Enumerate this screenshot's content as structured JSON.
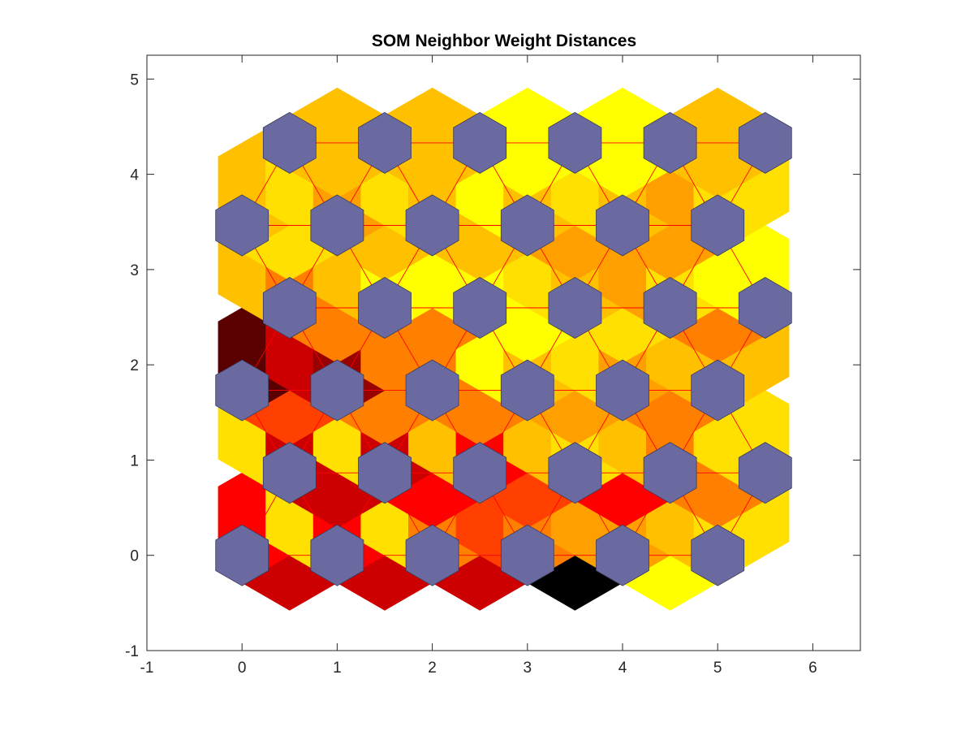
{
  "chart_data": {
    "type": "heatmap",
    "title": "SOM Neighbor Weight Distances",
    "xlabel": "",
    "ylabel": "",
    "xlim": [
      -1,
      6.5
    ],
    "ylim": [
      -1,
      5.25
    ],
    "x_ticks": [
      "-1",
      "0",
      "1",
      "2",
      "3",
      "4",
      "5",
      "6"
    ],
    "y_ticks": [
      "-1",
      "0",
      "1",
      "2",
      "3",
      "4",
      "5"
    ],
    "grid": false,
    "grid_size": [
      6,
      6
    ],
    "neuron_color": "#6a6aa0",
    "line_color": "#ff0000",
    "colormap": [
      "#000000",
      "#5a0000",
      "#990000",
      "#cc0000",
      "#ff0000",
      "#ff4000",
      "#ff8000",
      "#ffa000",
      "#ffc000",
      "#ffe000",
      "#ffff00"
    ],
    "distance_rows": [
      [
        0.34,
        0.34,
        0.34,
        0.0,
        0.95,
        0.8
      ],
      [
        0.4,
        0.9,
        0.4,
        0.9,
        0.58,
        0.45,
        0.6,
        0.65,
        0.7,
        0.75,
        0.9
      ],
      [
        0.34,
        0.44,
        0.52,
        0.4,
        0.6,
        0.66,
        0.34,
        0.66,
        0.58,
        0.66,
        0.66,
        0.78
      ],
      [
        0.9,
        0.34,
        0.9,
        0.34,
        0.75,
        0.44,
        0.75,
        0.9,
        0.75,
        0.6,
        0.92
      ],
      [
        0.47,
        0.56,
        0.6,
        0.66,
        0.6
      ],
      [
        0.05,
        0.34,
        0.15,
        0.57,
        0.58,
        0.97,
        0.75,
        0.85,
        0.7,
        0.75,
        0.75
      ],
      [
        0.64,
        0.6,
        0.95,
        0.85,
        0.64,
        0.95
      ],
      [
        0.75,
        0.58,
        0.76,
        0.95,
        0.95,
        0.95,
        0.85,
        0.76,
        0.66,
        0.85,
        0.98
      ],
      [
        0.85,
        0.75,
        0.76,
        0.7,
        0.66,
        0.85,
        0.6,
        0.7,
        0.85,
        0.75,
        0.75,
        0.9
      ],
      [
        0.76,
        0.85,
        0.7,
        0.85,
        0.76,
        0.95,
        0.8,
        0.85,
        0.75,
        0.66,
        0.92
      ],
      [
        0.76,
        0.8,
        0.95,
        0.96,
        0.76
      ]
    ]
  }
}
